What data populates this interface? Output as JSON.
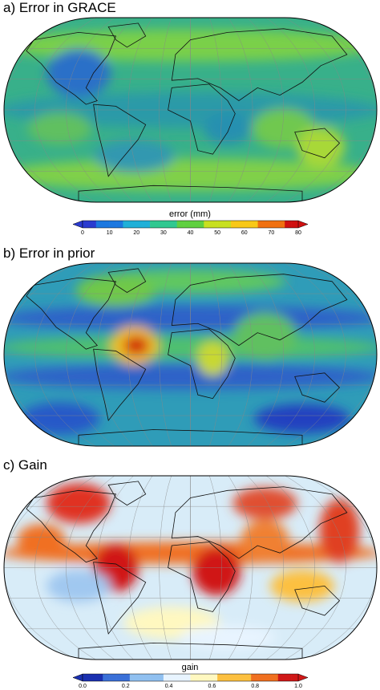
{
  "panels": [
    {
      "title": "a) Error in GRACE",
      "colorbar": {
        "label": "error (mm)",
        "ticks": [
          "0",
          "10",
          "20",
          "30",
          "40",
          "50",
          "60",
          "70",
          "80"
        ]
      }
    },
    {
      "title": "b) Error in prior"
    },
    {
      "title": "c) Gain",
      "colorbar": {
        "label": "gain",
        "ticks": [
          "0.0",
          "0.2",
          "0.4",
          "0.6",
          "0.8",
          "1.0"
        ]
      }
    }
  ]
}
